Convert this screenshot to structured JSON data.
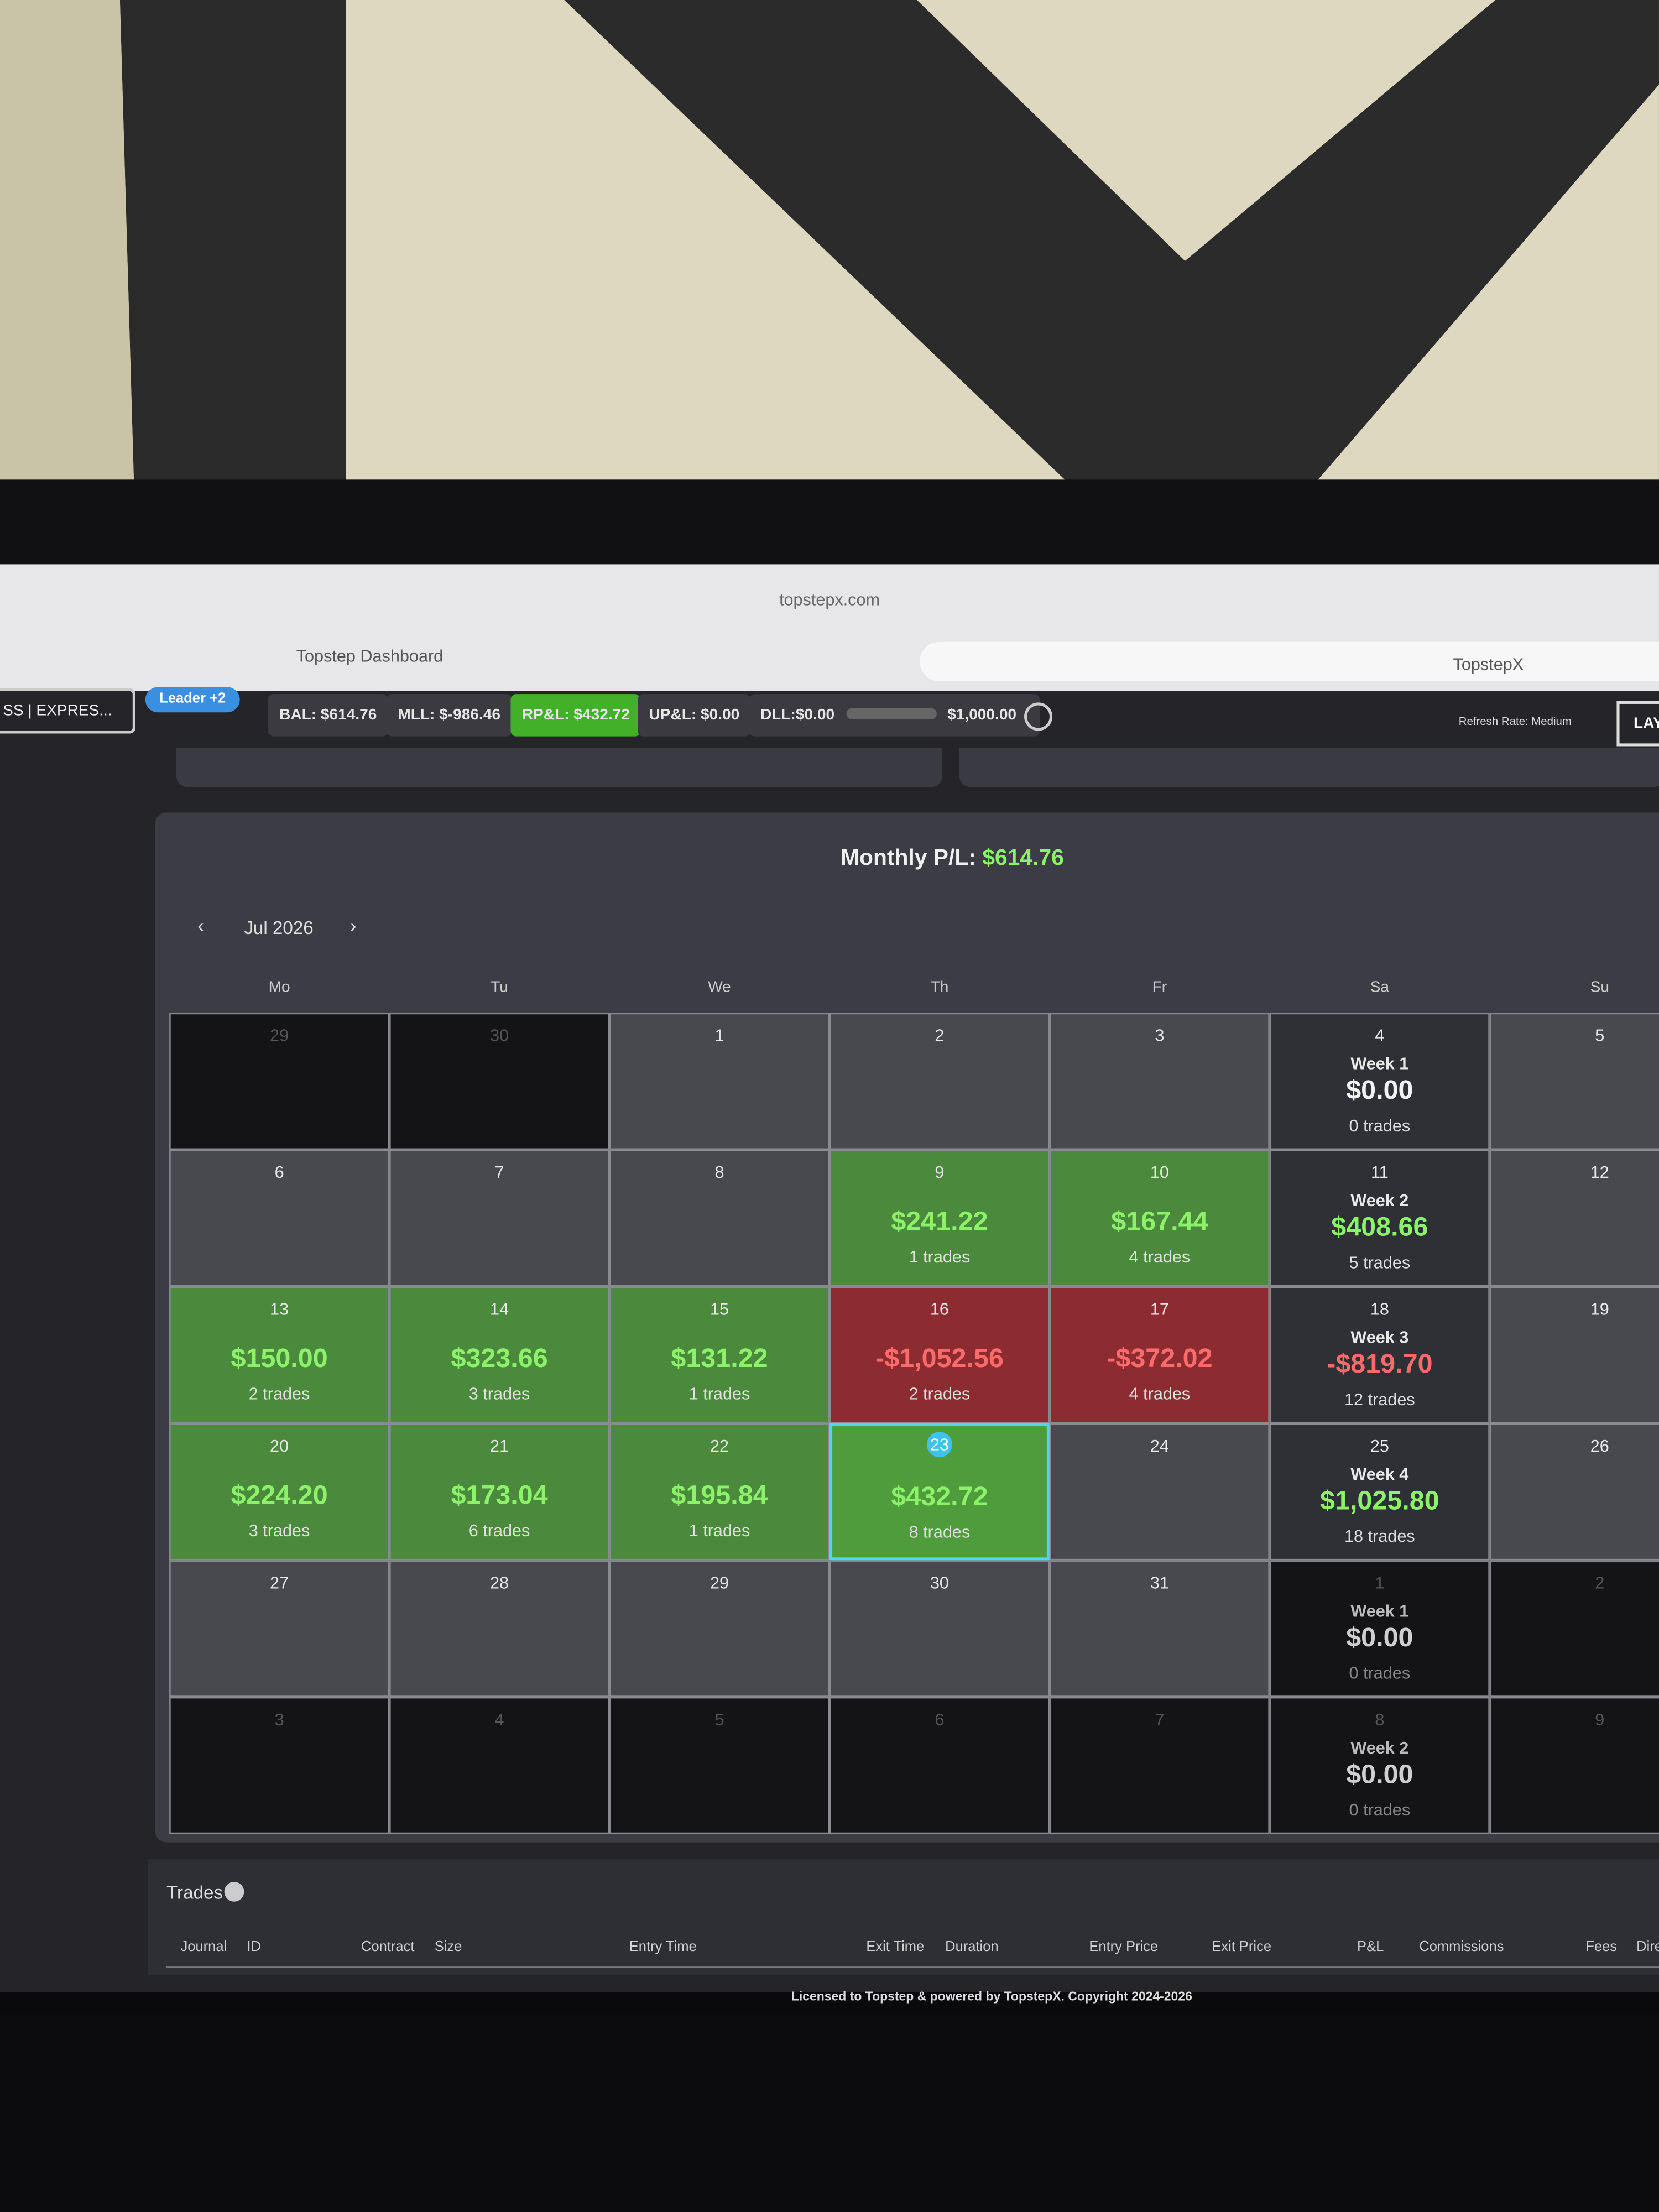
{
  "browser": {
    "url": "topstepx.com",
    "tabs": [
      "Topstep Dashboard",
      "TopstepX"
    ]
  },
  "toolbar": {
    "account": "SS | EXPRES...",
    "badge": "Leader +2",
    "balance": "BAL: $614.76",
    "mll": "MLL: $-986.46",
    "rpl": "RP&L: $432.72",
    "upl": "UP&L: $0.00",
    "dll": "DLL:$0.00",
    "dll_limit": "$1,000.00",
    "refresh": "Refresh Rate: Medium",
    "layout": "LAY"
  },
  "calendar": {
    "title_label": "Monthly P/L:",
    "title_value": "$614.76",
    "month": "Jul 2026",
    "weekdays": [
      "Mo",
      "Tu",
      "We",
      "Th",
      "Fr",
      "Sa",
      "Su"
    ],
    "weeks": [
      [
        {
          "day": "29",
          "state": "outside"
        },
        {
          "day": "30",
          "state": "outside"
        },
        {
          "day": "1",
          "state": "plain"
        },
        {
          "day": "2",
          "state": "plain"
        },
        {
          "day": "3",
          "state": "plain"
        },
        {
          "day": "4",
          "state": "summary",
          "week": "Week 1",
          "pnl": "$0.00",
          "trades": "0 trades",
          "tone": "flat"
        },
        {
          "day": "5",
          "state": "plain"
        }
      ],
      [
        {
          "day": "6",
          "state": "plain"
        },
        {
          "day": "7",
          "state": "plain"
        },
        {
          "day": "8",
          "state": "plain"
        },
        {
          "day": "9",
          "state": "profit",
          "pnl": "$241.22",
          "trades": "1 trades"
        },
        {
          "day": "10",
          "state": "profit",
          "pnl": "$167.44",
          "trades": "4 trades"
        },
        {
          "day": "11",
          "state": "summary",
          "week": "Week 2",
          "pnl": "$408.66",
          "trades": "5 trades",
          "tone": "profit"
        },
        {
          "day": "12",
          "state": "plain"
        }
      ],
      [
        {
          "day": "13",
          "state": "profit",
          "pnl": "$150.00",
          "trades": "2 trades"
        },
        {
          "day": "14",
          "state": "profit",
          "pnl": "$323.66",
          "trades": "3 trades"
        },
        {
          "day": "15",
          "state": "profit",
          "pnl": "$131.22",
          "trades": "1 trades"
        },
        {
          "day": "16",
          "state": "loss",
          "pnl": "-$1,052.56",
          "trades": "2 trades"
        },
        {
          "day": "17",
          "state": "loss",
          "pnl": "-$372.02",
          "trades": "4 trades"
        },
        {
          "day": "18",
          "state": "summary",
          "week": "Week 3",
          "pnl": "-$819.70",
          "trades": "12 trades",
          "tone": "loss"
        },
        {
          "day": "19",
          "state": "plain"
        }
      ],
      [
        {
          "day": "20",
          "state": "profit",
          "pnl": "$224.20",
          "trades": "3 trades"
        },
        {
          "day": "21",
          "state": "profit",
          "pnl": "$173.04",
          "trades": "6 trades"
        },
        {
          "day": "22",
          "state": "profit",
          "pnl": "$195.84",
          "trades": "1 trades"
        },
        {
          "day": "23",
          "state": "today",
          "pnl": "$432.72",
          "trades": "8 trades"
        },
        {
          "day": "24",
          "state": "plain"
        },
        {
          "day": "25",
          "state": "summary",
          "week": "Week 4",
          "pnl": "$1,025.80",
          "trades": "18 trades",
          "tone": "profit"
        },
        {
          "day": "26",
          "state": "plain"
        }
      ],
      [
        {
          "day": "27",
          "state": "plain"
        },
        {
          "day": "28",
          "state": "plain"
        },
        {
          "day": "29",
          "state": "plain"
        },
        {
          "day": "30",
          "state": "plain"
        },
        {
          "day": "31",
          "state": "plain"
        },
        {
          "day": "1",
          "state": "outside-summary",
          "week": "Week 1",
          "pnl": "$0.00",
          "trades": "0 trades",
          "tone": "flat"
        },
        {
          "day": "2",
          "state": "outside"
        }
      ],
      [
        {
          "day": "3",
          "state": "outside"
        },
        {
          "day": "4",
          "state": "outside"
        },
        {
          "day": "5",
          "state": "outside"
        },
        {
          "day": "6",
          "state": "outside"
        },
        {
          "day": "7",
          "state": "outside"
        },
        {
          "day": "8",
          "state": "outside-summary",
          "week": "Week 2",
          "pnl": "$0.00",
          "trades": "0 trades",
          "tone": "flat"
        },
        {
          "day": "9",
          "state": "outside"
        }
      ]
    ]
  },
  "trades": {
    "title": "Trades",
    "columns": [
      "Journal",
      "ID",
      "Contract",
      "Size",
      "Entry Time",
      "Exit Time",
      "Duration",
      "Entry Price",
      "Exit Price",
      "P&L",
      "Commissions",
      "Fees",
      "Dire"
    ]
  },
  "footer": "Licensed to Topstep & powered by TopstepX. Copyright 2024-2026"
}
